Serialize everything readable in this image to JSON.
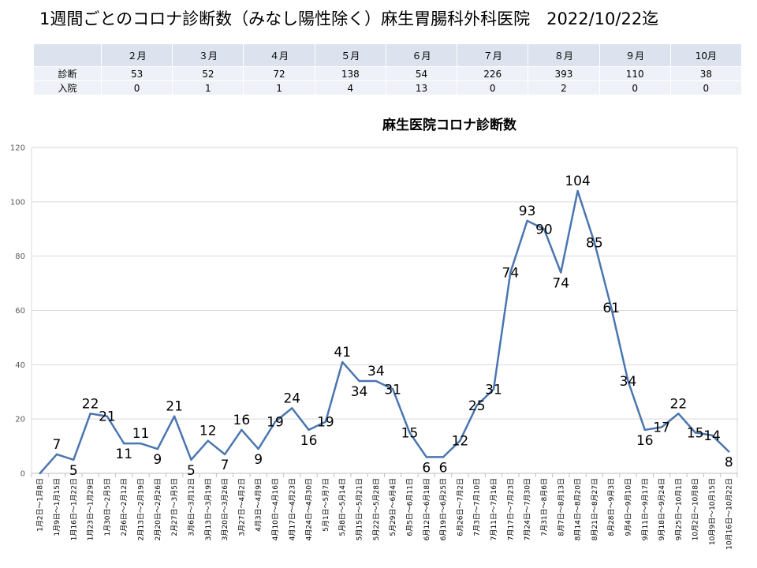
{
  "page_title": "1週間ごとのコロナ診断数（みなし陽性除く）麻生胃腸科外科医院　2022/10/22迄",
  "summary_table": {
    "months": [
      "２月",
      "３月",
      "４月",
      "５月",
      "６月",
      "７月",
      "８月",
      "９月",
      "10月"
    ],
    "rows": [
      {
        "label": "診断",
        "values": [
          "53",
          "52",
          "72",
          "138",
          "54",
          "226",
          "393",
          "110",
          "38"
        ]
      },
      {
        "label": "入院",
        "values": [
          "0",
          "1",
          "1",
          "4",
          "13",
          "0",
          "2",
          "0",
          "0"
        ]
      }
    ]
  },
  "chart_data": {
    "type": "line",
    "title": "麻生医院コロナ診断数",
    "xlabel": "",
    "ylabel": "",
    "ylim": [
      0,
      120
    ],
    "yticks": [
      0,
      20,
      40,
      60,
      80,
      100,
      120
    ],
    "grid": true,
    "legend": "none",
    "line_color": "#4a76b0",
    "categories": [
      "1月2日～1月8日",
      "1月9日～1月15日",
      "1月16日～1月22日",
      "1月23日～1月29日",
      "1月30日～2月5日",
      "2月6日～2月12日",
      "2月13日～2月19日",
      "2月20日～2月26日",
      "2月27日～3月5日",
      "3月6日～3月12日",
      "3月13日～3月19日",
      "3月20日～3月26日",
      "3月27日～4月2日",
      "4月3日～4月9日",
      "4月10日～4月16日",
      "4月17日～4月23日",
      "4月24日～4月30日",
      "5月1日～5月7日",
      "5月8日～5月14日",
      "5月15日～5月21日",
      "5月22日～5月28日",
      "5月29日～6月4日",
      "6月5日～6月11日",
      "6月12日～6月18日",
      "6月19日～6月25日",
      "6月26日～7月2日",
      "7月3日～7月10日",
      "7月11日～7月16日",
      "7月17日～7月23日",
      "7月24日～7月30日",
      "7月31日～8月6日",
      "8月7日～8月13日",
      "8月14日～8月20日",
      "8月21日～8月27日",
      "8月28日～9月3日",
      "9月4日～9月10日",
      "9月11日～9月17日",
      "9月18日～9月24日",
      "9月25日～10月1日",
      "10月2日～10月8日",
      "10月9日～10月15日",
      "10月16日～10月22日"
    ],
    "values": [
      0,
      7,
      5,
      22,
      21,
      11,
      11,
      9,
      21,
      5,
      12,
      7,
      16,
      9,
      19,
      24,
      16,
      19,
      41,
      34,
      34,
      31,
      15,
      6,
      6,
      12,
      25,
      31,
      74,
      93,
      90,
      74,
      104,
      85,
      61,
      34,
      16,
      17,
      22,
      15,
      14,
      8
    ],
    "data_labels": [
      null,
      "7",
      "5",
      "22",
      "21",
      "11",
      "11",
      "9",
      "21",
      "5",
      "12",
      "7",
      "16",
      "9",
      "19",
      "24",
      "16",
      "19",
      "41",
      "34",
      "34",
      "31",
      "15",
      "6",
      "6",
      "12",
      "25",
      "31",
      "74",
      "93",
      "90",
      "74",
      "104",
      "85",
      "61",
      "34",
      "16",
      "17",
      "22",
      "15",
      "14",
      "8"
    ]
  }
}
